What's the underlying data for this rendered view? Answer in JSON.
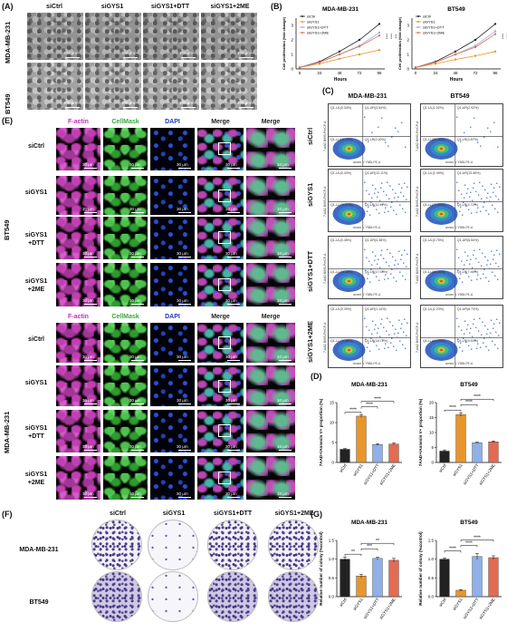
{
  "panels": {
    "A": "(A)",
    "B": "(B)",
    "C": "(C)",
    "D": "(D)",
    "E": "(E)",
    "F": "(F)",
    "G": "(G)"
  },
  "groups": [
    "siCtrl",
    "siGYS1",
    "siGYS1+DTT",
    "siGYS1+2ME"
  ],
  "cell_lines": {
    "mda": "MDA-MB-231",
    "bt": "BT549"
  },
  "panel_a": {
    "scale_label": "100 μm"
  },
  "panel_b": {
    "charts": [
      {
        "title": "MDA-MB-231",
        "ylabel": "Cell proliferation (fold change)",
        "xlabel": "Hours",
        "sig": [
          "****",
          "****",
          "***"
        ]
      },
      {
        "title": "BT549",
        "ylabel": "Cell proliferation (fold change)",
        "xlabel": "Hours",
        "sig": [
          "****",
          "****",
          "***"
        ]
      }
    ],
    "xticks": [
      "0",
      "24",
      "48",
      "72",
      "96"
    ],
    "yticks": [
      "0",
      "1",
      "2",
      "3"
    ],
    "legend": [
      "siCtrl",
      "siGYS1",
      "siGYS1+DTT",
      "siGYS1+2ME"
    ]
  },
  "panel_c": {
    "row_labels": [
      "siCtrl",
      "siGYS1",
      "siGYS1+DTT",
      "siGYS1+2ME"
    ],
    "xaxis": "annex V Y585-PE-A",
    "yaxis": "7-AAD B695-PerCP-A",
    "quadrants": {
      "mda": [
        [
          "Q1-UL(0.34%)",
          "Q1-UR(3.54%)",
          "Q1-LL(95.72%)",
          "Q1-LR(0.40%)"
        ],
        [
          "Q1-UL(0.43%)",
          "Q1-UR(12.11%)",
          "Q1-LL(75.47%)",
          "Q1-LR(11.99%)"
        ],
        [
          "Q1-UL(0.45%)",
          "Q1-UR(4.38%)",
          "Q1-LL(78.38%)",
          "Q1-LR(17.03%)"
        ],
        [
          "Q1-UL(0.39%)",
          "Q1-UR(1.14%)",
          "Q1-LL(79.98%)",
          "Q1-LR(18.72%)"
        ]
      ],
      "bt": [
        [
          "Q1-UL(1.02%)",
          "Q1-UR(2.92%)",
          "Q1-LL(95.16%)",
          "Q1-LR(0.87%)"
        ],
        [
          "Q1-UL(1.49%)",
          "Q1-UR(13.48%)",
          "Q1-LL(77.89%)",
          "Q1-LR(4.72%)"
        ],
        [
          "Q1-UL(0.75%)",
          "Q1-UR(5.54%)",
          "Q1-LL(86.25%)",
          "Q1-LR(7.46%)"
        ],
        [
          "Q1-UL(2.23%)",
          "Q1-UR(6.73%)",
          "Q1-LL(81.99%)",
          "Q1-LR(9.53%)"
        ]
      ]
    }
  },
  "panel_d": {
    "ylabel": "7AAD+/Annexin V+ proportion (%)",
    "sig": [
      "****",
      "****",
      "****"
    ]
  },
  "panel_e": {
    "columns": [
      "F-actin",
      "CellMask",
      "DAPI",
      "Merge",
      "Merge"
    ],
    "column_colors": [
      "#c030c0",
      "#3aa83a",
      "#2036c0",
      "#222222",
      "#222222"
    ],
    "row_labels": [
      "siCtrl",
      "siGYS1",
      "siGYS1\n+DTT",
      "siGYS1\n+2ME"
    ],
    "scale_label": "30 μm",
    "zoom_scale": "10 μm"
  },
  "panel_f": {
    "rows": [
      "MDA-MB-231",
      "BT549"
    ]
  },
  "panel_g": {
    "ylabel": "Relative number of colony (%control)",
    "sig_mda": [
      "**",
      "***",
      "**"
    ],
    "sig_bt": [
      "****",
      "****",
      "****"
    ]
  },
  "chart_data": [
    {
      "type": "line",
      "title": "MDA-MB-231",
      "xlabel": "Hours",
      "ylabel": "Cell proliferation (fold change)",
      "x": [
        0,
        24,
        48,
        72,
        96
      ],
      "ylim": [
        0,
        3.5
      ],
      "series": [
        {
          "name": "siCtrl",
          "values": [
            0.1,
            0.5,
            1.2,
            2.0,
            3.1
          ]
        },
        {
          "name": "siGYS1",
          "values": [
            0.1,
            0.35,
            0.7,
            1.0,
            1.3
          ]
        },
        {
          "name": "siGYS1+DTT",
          "values": [
            0.1,
            0.45,
            1.0,
            1.6,
            2.5
          ]
        },
        {
          "name": "siGYS1+2ME",
          "values": [
            0.1,
            0.45,
            1.0,
            1.55,
            2.3
          ]
        }
      ]
    },
    {
      "type": "line",
      "title": "BT549",
      "xlabel": "Hours",
      "ylabel": "Cell proliferation (fold change)",
      "x": [
        0,
        24,
        48,
        72,
        96
      ],
      "ylim": [
        0,
        3.5
      ],
      "series": [
        {
          "name": "siCtrl",
          "values": [
            0.1,
            0.5,
            1.2,
            2.0,
            3.1
          ]
        },
        {
          "name": "siGYS1",
          "values": [
            0.1,
            0.35,
            0.65,
            0.9,
            1.2
          ]
        },
        {
          "name": "siGYS1+DTT",
          "values": [
            0.1,
            0.45,
            1.0,
            1.6,
            2.6
          ]
        },
        {
          "name": "siGYS1+2ME",
          "values": [
            0.1,
            0.45,
            1.0,
            1.5,
            2.4
          ]
        }
      ]
    },
    {
      "type": "bar",
      "title": "MDA-MB-231",
      "ylabel": "7AAD+/Annexin V+ proportion (%)",
      "categories": [
        "siCtrl",
        "siGYS1",
        "siGYS1+DTT",
        "siGYS1+2ME"
      ],
      "values": [
        3.3,
        11.6,
        4.5,
        4.6
      ],
      "errors": [
        0.2,
        0.3,
        0.2,
        0.3
      ],
      "ylim": [
        0,
        15
      ],
      "yticks": [
        0,
        5,
        10,
        15
      ]
    },
    {
      "type": "bar",
      "title": "BT549",
      "ylabel": "7AAD+/Annexin V+ proportion (%)",
      "categories": [
        "siCtrl",
        "siGYS1",
        "siGYS1+DTT",
        "siGYS1+2ME"
      ],
      "values": [
        3.8,
        16.0,
        6.6,
        6.9
      ],
      "errors": [
        0.4,
        0.6,
        0.2,
        0.3
      ],
      "ylim": [
        0,
        20
      ],
      "yticks": [
        0,
        5,
        10,
        15,
        20
      ]
    },
    {
      "type": "bar",
      "title": "MDA-MB-231",
      "ylabel": "Relative number of colony (%control)",
      "categories": [
        "siCtrl",
        "siGYS1",
        "siGYS1+DTT",
        "siGYS1+2ME"
      ],
      "values": [
        1.0,
        0.55,
        1.02,
        0.97
      ],
      "errors": [
        0.06,
        0.05,
        0.03,
        0.05
      ],
      "ylim": [
        0,
        1.5
      ],
      "yticks": [
        0.0,
        0.5,
        1.0,
        1.5
      ]
    },
    {
      "type": "bar",
      "title": "BT549",
      "ylabel": "Relative number of colony (%control)",
      "categories": [
        "siCtrl",
        "siGYS1",
        "siGYS1+DTT",
        "siGYS1+2ME"
      ],
      "values": [
        1.0,
        0.17,
        1.07,
        1.04
      ],
      "errors": [
        0.03,
        0.02,
        0.08,
        0.05
      ],
      "ylim": [
        0,
        1.5
      ],
      "yticks": [
        0.0,
        0.5,
        1.0,
        1.5
      ]
    }
  ],
  "colors": {
    "siCtrl": "#222222",
    "siGYS1": "#e8952c",
    "siGYS1+DTT": "#8fb0e8",
    "siGYS1+2ME": "#e36b52"
  }
}
